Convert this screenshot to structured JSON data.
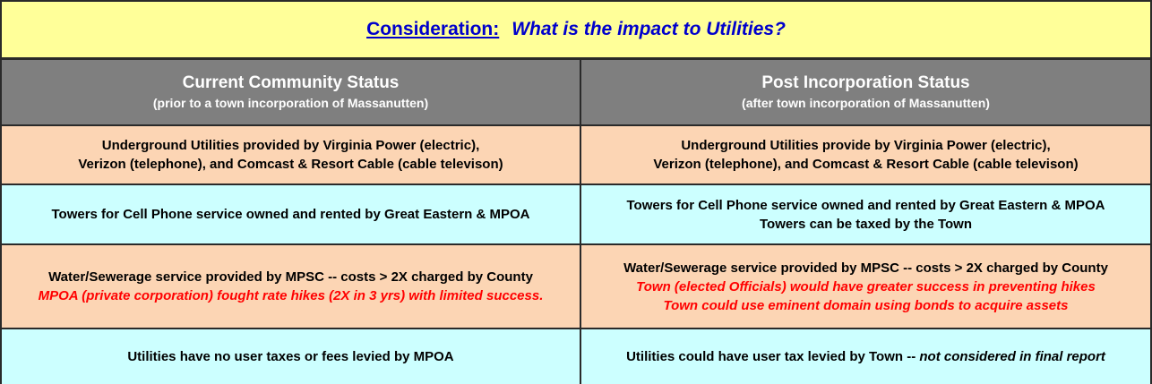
{
  "title": {
    "label": "Consideration:",
    "question": "What is the impact to Utilities?"
  },
  "columns": [
    {
      "heading": "Current Community Status",
      "subheading": "(prior to a town incorporation of Massanutten)"
    },
    {
      "heading": "Post Incorporation Status",
      "subheading": "(after town incorporation of Massanutten)"
    }
  ],
  "rows": [
    {
      "current": [
        "Underground Utilities provided by Virginia Power (electric),",
        "Verizon (telephone), and Comcast & Resort Cable (cable televison)"
      ],
      "post": [
        "Underground Utilities provide by Virginia Power (electric),",
        "Verizon (telephone), and Comcast & Resort Cable (cable televison)"
      ]
    },
    {
      "current": [
        "Towers for Cell Phone service owned and rented by Great Eastern & MPOA"
      ],
      "post": [
        "Towers for Cell Phone service owned and rented by Great Eastern & MPOA",
        "Towers can be taxed by the Town"
      ]
    },
    {
      "current": [
        "Water/Sewerage service provided by MPSC -- costs > 2X charged by County"
      ],
      "current_note": [
        "MPOA (private corporation) fought rate hikes (2X in 3 yrs) with limited success."
      ],
      "post": [
        "Water/Sewerage service provided by MPSC -- costs > 2X charged by County"
      ],
      "post_note": [
        "Town (elected Officials) would have greater success in preventing hikes",
        "Town could use eminent domain using bonds to acquire assets"
      ]
    },
    {
      "current": [
        "Utilities have no user taxes or fees levied by MPOA"
      ],
      "post": [
        "Utilities could have user tax levied by Town -- "
      ],
      "post_italic": "not considered in final report"
    }
  ],
  "colors": {
    "title_bg": "#ffff99",
    "title_text": "#0000cc",
    "header_bg": "#7f7f7f",
    "peach": "#fcd5b4",
    "cyan": "#ccffff",
    "note_red": "#ff0000"
  }
}
